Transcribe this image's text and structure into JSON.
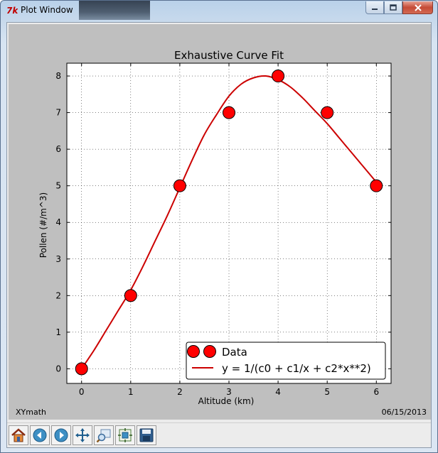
{
  "window": {
    "title": "Plot Window",
    "icon": "tk-feather-icon",
    "buttons": [
      "minimize-icon",
      "maximize-icon",
      "close-icon"
    ]
  },
  "footer": {
    "left_text": "XYmath",
    "right_text": "06/15/2013"
  },
  "toolbar": {
    "buttons": [
      {
        "name": "home-button",
        "icon": "home-icon"
      },
      {
        "name": "back-button",
        "icon": "arrow-left-icon"
      },
      {
        "name": "forward-button",
        "icon": "arrow-right-icon"
      },
      {
        "name": "pan-button",
        "icon": "move-arrows-icon"
      },
      {
        "name": "zoom-button",
        "icon": "zoom-rectangle-icon"
      },
      {
        "name": "subplots-button",
        "icon": "configure-subplots-icon"
      },
      {
        "name": "save-button",
        "icon": "floppy-disk-icon"
      }
    ]
  },
  "chart_data": {
    "type": "scatter",
    "title": "Exhaustive Curve Fit",
    "xlabel": "Altitude (km)",
    "ylabel": "Pollen (#/m^3)",
    "xlim": [
      -0.3,
      6.3
    ],
    "ylim": [
      -0.4,
      8.35
    ],
    "xticks": [
      0,
      1,
      2,
      3,
      4,
      5,
      6
    ],
    "yticks": [
      0,
      1,
      2,
      3,
      4,
      5,
      6,
      7,
      8
    ],
    "grid": true,
    "legend_position": "lower-right",
    "colors": {
      "data": "#ff0000",
      "fit": "#cc0000",
      "background": "#bfbfbf"
    },
    "series": [
      {
        "name": "Data",
        "kind": "points",
        "x": [
          0,
          1,
          2,
          3,
          4,
          5,
          6
        ],
        "y": [
          0,
          2,
          5,
          7,
          8,
          7,
          5
        ]
      },
      {
        "name": "y = 1/(c0 + c1/x + c2*x**2)",
        "kind": "line",
        "x": [
          0,
          0.25,
          0.5,
          0.75,
          1.0,
          1.25,
          1.5,
          1.75,
          2.0,
          2.25,
          2.5,
          2.75,
          3.0,
          3.25,
          3.5,
          3.75,
          4.0,
          4.25,
          4.5,
          4.75,
          5.0,
          5.25,
          5.5,
          5.75,
          6.0
        ],
        "y": [
          0,
          0.5,
          1.05,
          1.6,
          2.15,
          2.8,
          3.5,
          4.2,
          4.95,
          5.7,
          6.4,
          6.95,
          7.45,
          7.78,
          7.95,
          8.0,
          7.9,
          7.7,
          7.4,
          7.05,
          6.7,
          6.3,
          5.9,
          5.5,
          5.1
        ]
      }
    ]
  }
}
